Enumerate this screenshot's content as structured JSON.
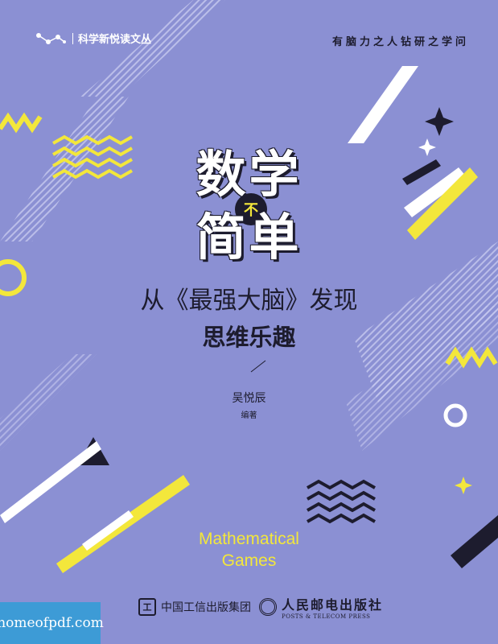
{
  "series": {
    "label": "科学新悦读文丛",
    "icon": "molecule-icon"
  },
  "slogan": "有脑力之人钻研之学问",
  "title": {
    "line1": "数学",
    "badge": "不",
    "line2": "简单"
  },
  "subtitle": {
    "line1": "从《最强大脑》发现",
    "line2": "思维乐趣"
  },
  "author": {
    "name": "吴悦辰",
    "role": "编著"
  },
  "english_title": {
    "line1": "Mathematical",
    "line2": "Games"
  },
  "publishers": [
    {
      "name": "中国工信出版集团",
      "icon": "miit-logo-icon"
    },
    {
      "name": "人民邮电出版社",
      "name_en": "POSTS & TELECOM PRESS",
      "icon": "ptpress-logo-icon"
    }
  ],
  "watermark": "homeofpdf.com",
  "colors": {
    "background": "#8b90d3",
    "accent_yellow": "#f3e73b",
    "dark": "#1d1c2e",
    "white": "#ffffff"
  }
}
